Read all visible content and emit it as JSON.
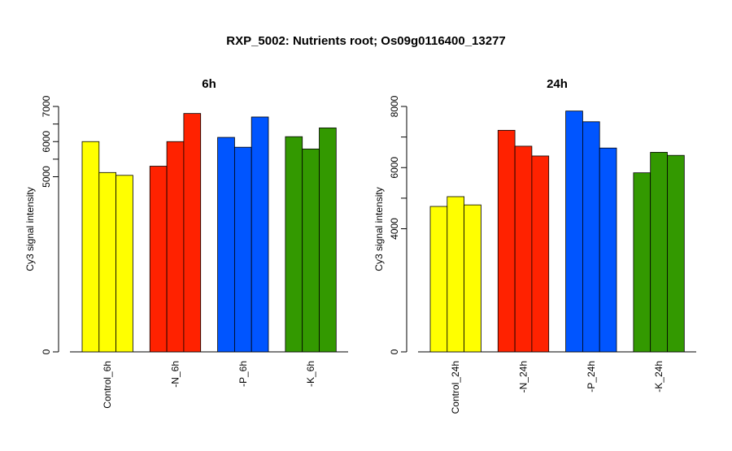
{
  "figure_title": "RXP_5002: Nutrients root; Os09g0116400_13277",
  "chart_data": [
    {
      "type": "bar",
      "title": "6h",
      "ylabel": "Cy3 signal intensity",
      "xlabel": "",
      "ylim": [
        0,
        7000
      ],
      "yticks": [
        0,
        5000,
        6000,
        7000
      ],
      "minor_ticks": [
        5500,
        6500
      ],
      "broken_axis": true,
      "categories": [
        "Control_6h",
        "-N_6h",
        "-P_6h",
        "-K_6h"
      ],
      "colors": [
        "#ffff00",
        "#ff2200",
        "#0055ff",
        "#339900"
      ],
      "values": [
        [
          6000,
          5120,
          5040
        ],
        [
          5300,
          6000,
          6800
        ],
        [
          6120,
          5840,
          6700
        ],
        [
          6140,
          5790,
          6390
        ]
      ]
    },
    {
      "type": "bar",
      "title": "24h",
      "ylabel": "Cy3 signal intensity",
      "xlabel": "",
      "ylim": [
        0,
        8000
      ],
      "yticks": [
        0,
        4000,
        6000,
        8000
      ],
      "minor_ticks": [
        5000,
        7000
      ],
      "broken_axis": true,
      "categories": [
        "Control_24h",
        "-N_24h",
        "-P_24h",
        "-K_24h"
      ],
      "colors": [
        "#ffff00",
        "#ff2200",
        "#0055ff",
        "#339900"
      ],
      "values": [
        [
          4730,
          5050,
          4780
        ],
        [
          7220,
          6700,
          6380
        ],
        [
          7850,
          7500,
          6640
        ],
        [
          5830,
          6500,
          6400
        ]
      ]
    }
  ]
}
